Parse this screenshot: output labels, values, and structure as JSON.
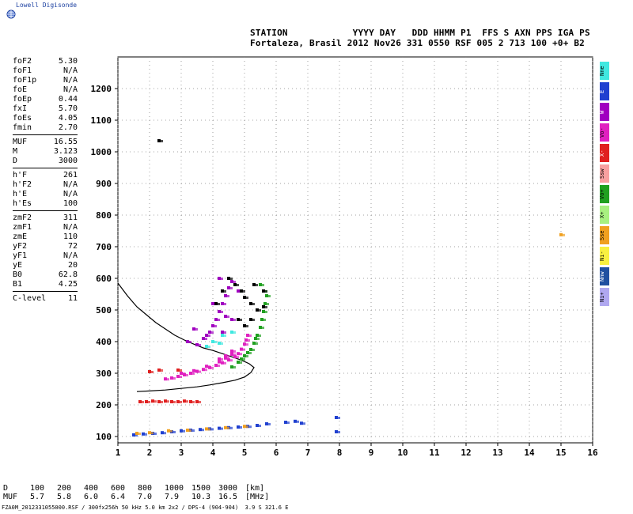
{
  "brand": {
    "name": "Lowell Digisonde",
    "logo_icon": "globe-icon"
  },
  "header": {
    "line1": "STATION            YYYY DAY   DDD HHMM P1  FFS S AXN PPS IGA PS",
    "line2": "Fortaleza, Brasil 2012 Nov26 331 0550 RSF 005 2 713 100 +0+ B2"
  },
  "params": {
    "group1": [
      {
        "label": "foF2",
        "value": "5.30"
      },
      {
        "label": "foF1",
        "value": "N/A"
      },
      {
        "label": "foF1p",
        "value": "N/A"
      },
      {
        "label": "foE",
        "value": "N/A"
      },
      {
        "label": "foEp",
        "value": "0.44"
      },
      {
        "label": "fxI",
        "value": "5.70"
      },
      {
        "label": "foEs",
        "value": "4.05"
      },
      {
        "label": "fmin",
        "value": "2.70"
      }
    ],
    "group2": [
      {
        "label": "MUF",
        "value": "16.55"
      },
      {
        "label": "M",
        "value": "3.123"
      },
      {
        "label": "D",
        "value": "3000"
      }
    ],
    "group3": [
      {
        "label": "h'F",
        "value": "261"
      },
      {
        "label": "h'F2",
        "value": "N/A"
      },
      {
        "label": "h'E",
        "value": "N/A"
      },
      {
        "label": "h'Es",
        "value": "100"
      }
    ],
    "group4": [
      {
        "label": "zmF2",
        "value": "311"
      },
      {
        "label": "zmF1",
        "value": "N/A"
      },
      {
        "label": "zmE",
        "value": "110"
      },
      {
        "label": "yF2",
        "value": "72"
      },
      {
        "label": "yF1",
        "value": "N/A"
      },
      {
        "label": "yE",
        "value": "20"
      },
      {
        "label": "B0",
        "value": "62.8"
      },
      {
        "label": "B1",
        "value": "4.25"
      }
    ],
    "group5": [
      {
        "label": "C-level",
        "value": "11"
      }
    ]
  },
  "legend": [
    {
      "label": "Nne",
      "color": "#40e8e0"
    },
    {
      "label": "E",
      "color": "#2040d0"
    },
    {
      "label": "W",
      "color": "#a000c0"
    },
    {
      "label": "Vo-",
      "color": "#e020c0"
    },
    {
      "label": "X-",
      "color": "#e02020"
    },
    {
      "label": "Ssw",
      "color": "#f8a0a0"
    },
    {
      "label": "Vo+",
      "color": "#20a020"
    },
    {
      "label": "X+",
      "color": "#a8f080"
    },
    {
      "label": "Sse",
      "color": "#f0a020"
    },
    {
      "label": "Ni-",
      "color": "#f8f040"
    },
    {
      "label": "Nnw",
      "color": "#2050a0"
    },
    {
      "label": "Ni+",
      "color": "#b0a8f0"
    }
  ],
  "muf_table": {
    "d_label": "D",
    "d_values": [
      "100",
      "200",
      "400",
      "600",
      "800",
      "1000",
      "1500",
      "3000"
    ],
    "d_unit": "[km]",
    "muf_label": "MUF",
    "muf_values": [
      "5.7",
      "5.8",
      "6.0",
      "6.4",
      "7.0",
      "7.9",
      "10.3",
      "16.5"
    ],
    "muf_unit": "[MHz]"
  },
  "footer": "FZA0M_2012331055000.RSF / 300fx256h 50 kHz 5.0 km 2x2 / DPS-4 (904-904)  3.9 S 321.6 E",
  "chart_data": {
    "type": "scatter",
    "xlim": [
      1,
      16
    ],
    "ylim": [
      80,
      1300
    ],
    "xticks": [
      "1",
      "2",
      "3",
      "4",
      "5",
      "6",
      "7",
      "8",
      "9",
      "10",
      "11",
      "12",
      "13",
      "14",
      "15",
      "16"
    ],
    "yticks": [
      "100",
      "200",
      "300",
      "400",
      "500",
      "600",
      "700",
      "800",
      "900",
      "1000",
      "1100",
      "1200"
    ],
    "grid": true,
    "profile_curve": [
      [
        1.0,
        585
      ],
      [
        1.3,
        545
      ],
      [
        1.6,
        510
      ],
      [
        1.9,
        485
      ],
      [
        2.2,
        460
      ],
      [
        2.5,
        440
      ],
      [
        2.8,
        420
      ],
      [
        3.1,
        405
      ],
      [
        3.4,
        392
      ],
      [
        3.7,
        380
      ],
      [
        4.0,
        372
      ],
      [
        4.3,
        362
      ],
      [
        4.6,
        352
      ],
      [
        4.8,
        345
      ],
      [
        5.0,
        337
      ],
      [
        5.15,
        330
      ],
      [
        5.3,
        318
      ],
      [
        5.2,
        302
      ],
      [
        5.0,
        288
      ],
      [
        4.7,
        278
      ],
      [
        4.3,
        270
      ],
      [
        3.9,
        263
      ],
      [
        3.5,
        257
      ],
      [
        3.0,
        252
      ],
      [
        2.5,
        247
      ],
      [
        2.0,
        244
      ],
      [
        1.6,
        242
      ]
    ],
    "traces": [
      {
        "name": "F-trace-magenta",
        "color": "#e020c0",
        "points": [
          [
            2.5,
            282
          ],
          [
            2.7,
            285
          ],
          [
            2.9,
            290
          ],
          [
            3.1,
            295
          ],
          [
            3.3,
            300
          ],
          [
            3.5,
            306
          ],
          [
            3.7,
            312
          ],
          [
            3.9,
            318
          ],
          [
            4.1,
            325
          ],
          [
            4.3,
            333
          ],
          [
            4.5,
            342
          ],
          [
            4.7,
            352
          ],
          [
            4.8,
            362
          ],
          [
            4.9,
            376
          ],
          [
            5.0,
            392
          ],
          [
            5.05,
            405
          ],
          [
            5.1,
            420
          ],
          [
            3.0,
            300
          ],
          [
            3.4,
            308
          ],
          [
            3.8,
            322
          ],
          [
            4.2,
            336
          ],
          [
            4.4,
            348
          ],
          [
            4.6,
            360
          ],
          [
            4.2,
            345
          ],
          [
            4.4,
            355
          ],
          [
            4.6,
            370
          ]
        ]
      },
      {
        "name": "F-trace-green",
        "color": "#20a020",
        "points": [
          [
            4.6,
            320
          ],
          [
            4.8,
            335
          ],
          [
            5.0,
            355
          ],
          [
            5.2,
            375
          ],
          [
            5.3,
            395
          ],
          [
            5.4,
            420
          ],
          [
            5.5,
            445
          ],
          [
            5.55,
            470
          ],
          [
            5.6,
            495
          ],
          [
            5.65,
            520
          ],
          [
            5.7,
            545
          ],
          [
            5.6,
            560
          ],
          [
            5.5,
            580
          ],
          [
            4.9,
            345
          ],
          [
            5.1,
            365
          ],
          [
            5.35,
            410
          ]
        ]
      },
      {
        "name": "F2-spread-purple",
        "color": "#a000c0",
        "points": [
          [
            3.5,
            390
          ],
          [
            3.7,
            410
          ],
          [
            3.9,
            430
          ],
          [
            4.0,
            450
          ],
          [
            4.1,
            470
          ],
          [
            4.2,
            495
          ],
          [
            4.3,
            520
          ],
          [
            4.4,
            545
          ],
          [
            4.5,
            570
          ],
          [
            4.2,
            600
          ],
          [
            4.6,
            590
          ],
          [
            4.8,
            560
          ],
          [
            4.4,
            480
          ],
          [
            4.6,
            470
          ],
          [
            3.8,
            420
          ],
          [
            4.0,
            520
          ],
          [
            4.3,
            430
          ],
          [
            3.2,
            400
          ],
          [
            3.4,
            440
          ]
        ]
      },
      {
        "name": "F2-black",
        "color": "#000000",
        "points": [
          [
            4.1,
            520
          ],
          [
            4.3,
            560
          ],
          [
            4.5,
            600
          ],
          [
            4.7,
            580
          ],
          [
            4.9,
            560
          ],
          [
            5.0,
            540
          ],
          [
            5.2,
            520
          ],
          [
            5.4,
            500
          ],
          [
            5.6,
            510
          ],
          [
            5.3,
            580
          ],
          [
            4.8,
            470
          ],
          [
            5.0,
            450
          ],
          [
            5.2,
            470
          ],
          [
            2.3,
            1035
          ],
          [
            5.6,
            560
          ]
        ]
      },
      {
        "name": "F2-cyan",
        "color": "#40e8e0",
        "points": [
          [
            4.0,
            400
          ],
          [
            4.2,
            395
          ],
          [
            3.8,
            385
          ],
          [
            4.6,
            430
          ],
          [
            4.3,
            420
          ]
        ]
      },
      {
        "name": "Es-trace",
        "color": "#e02020",
        "points": [
          [
            1.7,
            210
          ],
          [
            1.9,
            210
          ],
          [
            2.1,
            212
          ],
          [
            2.3,
            210
          ],
          [
            2.5,
            212
          ],
          [
            2.7,
            210
          ],
          [
            2.9,
            210
          ],
          [
            3.1,
            212
          ],
          [
            3.3,
            210
          ],
          [
            3.5,
            210
          ],
          [
            2.0,
            305
          ],
          [
            2.3,
            310
          ],
          [
            2.9,
            310
          ]
        ]
      },
      {
        "name": "E-region-mixed",
        "color": "#2040d0",
        "points": [
          [
            1.5,
            105
          ],
          [
            1.8,
            108
          ],
          [
            2.1,
            110
          ],
          [
            2.4,
            112
          ],
          [
            2.7,
            115
          ],
          [
            3.0,
            118
          ],
          [
            3.3,
            120
          ],
          [
            3.6,
            122
          ],
          [
            3.9,
            124
          ],
          [
            4.2,
            126
          ],
          [
            4.5,
            128
          ],
          [
            4.8,
            130
          ],
          [
            5.1,
            132
          ],
          [
            5.4,
            135
          ],
          [
            5.7,
            140
          ],
          [
            6.3,
            145
          ],
          [
            6.6,
            148
          ],
          [
            6.8,
            142
          ],
          [
            7.9,
            160
          ],
          [
            7.9,
            115
          ]
        ]
      },
      {
        "name": "E-region-orange",
        "color": "#f0a020",
        "points": [
          [
            1.6,
            110
          ],
          [
            2.0,
            112
          ],
          [
            2.6,
            118
          ],
          [
            3.2,
            120
          ],
          [
            3.8,
            124
          ],
          [
            4.4,
            128
          ],
          [
            5.0,
            132
          ],
          [
            15.0,
            738
          ]
        ]
      }
    ]
  }
}
